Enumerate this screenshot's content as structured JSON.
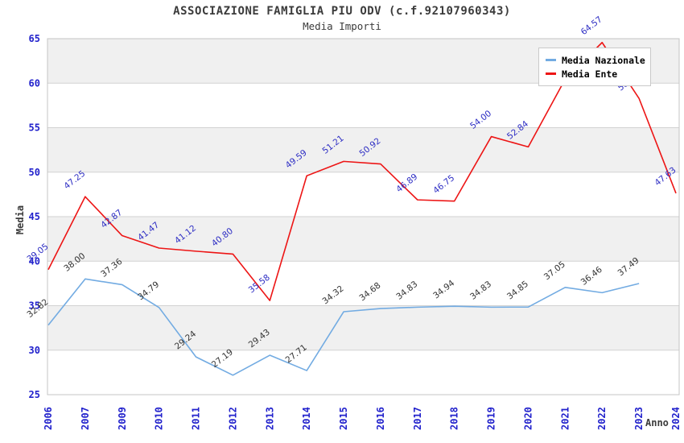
{
  "header": {
    "title": "ASSOCIAZIONE FAMIGLIA PIU ODV (c.f.92107960343)",
    "subtitle": "Media Importi"
  },
  "chart_data": {
    "type": "line",
    "title": "ASSOCIAZIONE FAMIGLIA PIU ODV (c.f.92107960343)",
    "subtitle": "Media Importi",
    "xlabel": "Anno",
    "ylabel": "Media",
    "categories": [
      "2006",
      "2007",
      "2009",
      "2010",
      "2011",
      "2012",
      "2013",
      "2014",
      "2015",
      "2016",
      "2017",
      "2018",
      "2019",
      "2020",
      "2021",
      "2022",
      "2023",
      "2024"
    ],
    "series": [
      {
        "name": "Media Nazionale",
        "color": "#72abe2",
        "label_color": "#333333",
        "values": [
          32.82,
          38.0,
          37.36,
          34.79,
          29.24,
          27.19,
          29.43,
          27.71,
          34.32,
          34.68,
          34.83,
          34.94,
          34.83,
          34.85,
          37.05,
          36.46,
          37.49,
          null
        ]
      },
      {
        "name": "Media Ente",
        "color": "#ed1515",
        "label_color": "#2e2ec4",
        "values": [
          39.05,
          47.25,
          42.87,
          41.47,
          41.12,
          40.8,
          35.58,
          49.59,
          51.21,
          50.92,
          46.89,
          46.75,
          54.0,
          52.84,
          60.45,
          64.57,
          58.29,
          47.63
        ]
      }
    ],
    "ylim": [
      25,
      65
    ],
    "ytick_step": 5,
    "grid": true,
    "alternating_bands": true,
    "legend_position": "top-right",
    "axis_tick_color": "#2222cc",
    "band_color": "#f0f0f0",
    "gridline_color": "#d2d2d2",
    "plot_border_color": "#c4c4c4",
    "note": "Media Ente 2021 data label is hidden behind the legend box (value estimated from line position)"
  }
}
